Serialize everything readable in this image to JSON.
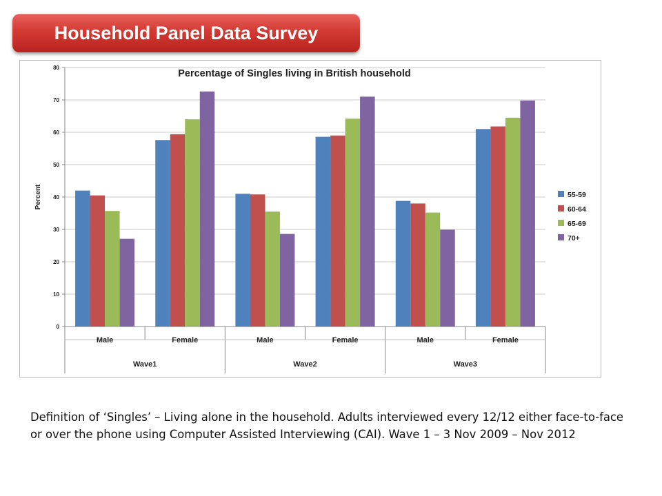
{
  "slide": {
    "title": "Household Panel Data Survey",
    "caption": "Definition of ‘Singles’ – Living alone in the household.  Adults  interviewed every 12/12 either face-to-face or over the phone using  Computer Assisted Interviewing (CAI). Wave 1 – 3 Nov 2009 – Nov 2012"
  },
  "colors": {
    "banner": "#d23a33",
    "series": [
      "#4f81bd",
      "#c0504d",
      "#9bbb59",
      "#8064a2"
    ]
  },
  "chart_data": {
    "type": "bar",
    "title": "Percentage of Singles living in British household",
    "ylabel": "Percent",
    "xlabel": "",
    "ylim": [
      0,
      80
    ],
    "yticks": [
      0,
      10,
      20,
      30,
      40,
      50,
      60,
      70,
      80
    ],
    "grid": true,
    "legend_position": "right",
    "categories": [
      "Male",
      "Female",
      "Male",
      "Female",
      "Male",
      "Female"
    ],
    "groups": [
      {
        "label": "Wave1",
        "categories": [
          0,
          1
        ]
      },
      {
        "label": "Wave2",
        "categories": [
          2,
          3
        ]
      },
      {
        "label": "Wave3",
        "categories": [
          4,
          5
        ]
      }
    ],
    "series": [
      {
        "name": "55-59",
        "values": [
          42,
          57.6,
          41,
          58.6,
          38.8,
          61
        ]
      },
      {
        "name": "60-64",
        "values": [
          40.5,
          59.4,
          40.8,
          59,
          38,
          61.8
        ]
      },
      {
        "name": "65-69",
        "values": [
          35.7,
          64,
          35.5,
          64.2,
          35.2,
          64.5
        ]
      },
      {
        "name": "70+",
        "values": [
          27.1,
          72.6,
          28.6,
          71,
          29.9,
          69.8
        ]
      }
    ]
  }
}
